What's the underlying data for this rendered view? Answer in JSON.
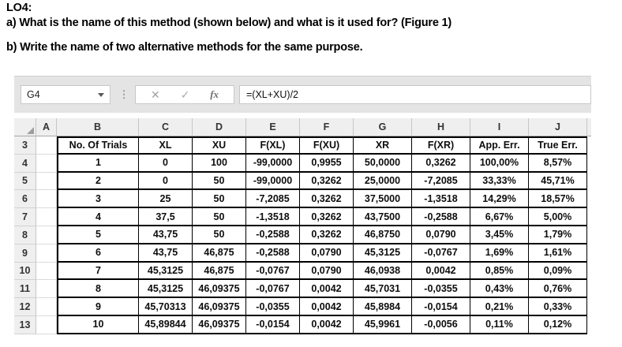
{
  "question": {
    "code": "LO4:",
    "part_a": "a) What is the name of this method (shown below) and what is it used for? (Figure 1)",
    "part_b": "b) Write the name of two alternative methods for the same purpose."
  },
  "spreadsheet": {
    "name_box": "G4",
    "formula": "=(XL+XU)/2",
    "icons": {
      "cancel": "✕",
      "confirm": "✓",
      "function": "fx",
      "drag_dots": "⋮"
    },
    "column_letters": [
      "A",
      "B",
      "C",
      "D",
      "E",
      "F",
      "G",
      "H",
      "I",
      "J"
    ],
    "row_numbers": [
      "3",
      "4",
      "5",
      "6",
      "7",
      "8",
      "9",
      "10",
      "11",
      "12",
      "13"
    ],
    "table": {
      "headers": [
        "No. Of Trials",
        "XL",
        "XU",
        "F(XL)",
        "F(XU)",
        "XR",
        "F(XR)",
        "App. Err.",
        "True Err."
      ],
      "rows": [
        [
          "1",
          "0",
          "100",
          "-99,0000",
          "0,9955",
          "50,0000",
          "0,3262",
          "100,00%",
          "8,57%"
        ],
        [
          "2",
          "0",
          "50",
          "-99,0000",
          "0,3262",
          "25,0000",
          "-7,2085",
          "33,33%",
          "45,71%"
        ],
        [
          "3",
          "25",
          "50",
          "-7,2085",
          "0,3262",
          "37,5000",
          "-1,3518",
          "14,29%",
          "18,57%"
        ],
        [
          "4",
          "37,5",
          "50",
          "-1,3518",
          "0,3262",
          "43,7500",
          "-0,2588",
          "6,67%",
          "5,00%"
        ],
        [
          "5",
          "43,75",
          "50",
          "-0,2588",
          "0,3262",
          "46,8750",
          "0,0790",
          "3,45%",
          "1,79%"
        ],
        [
          "6",
          "43,75",
          "46,875",
          "-0,2588",
          "0,0790",
          "45,3125",
          "-0,0767",
          "1,69%",
          "1,61%"
        ],
        [
          "7",
          "45,3125",
          "46,875",
          "-0,0767",
          "0,0790",
          "46,0938",
          "0,0042",
          "0,85%",
          "0,09%"
        ],
        [
          "8",
          "45,3125",
          "46,09375",
          "-0,0767",
          "0,0042",
          "45,7031",
          "-0,0355",
          "0,43%",
          "0,76%"
        ],
        [
          "9",
          "45,70313",
          "46,09375",
          "-0,0355",
          "0,0042",
          "45,8984",
          "-0,0154",
          "0,21%",
          "0,33%"
        ],
        [
          "10",
          "45,89844",
          "46,09375",
          "-0,0154",
          "0,0042",
          "45,9961",
          "-0,0056",
          "0,11%",
          "0,12%"
        ]
      ]
    }
  },
  "colors": {
    "chrome_bg": "#e4e4e4",
    "header_bg": "#efefef",
    "table_border": "#000000",
    "gridline": "#dadada",
    "header_text": "#333333"
  }
}
